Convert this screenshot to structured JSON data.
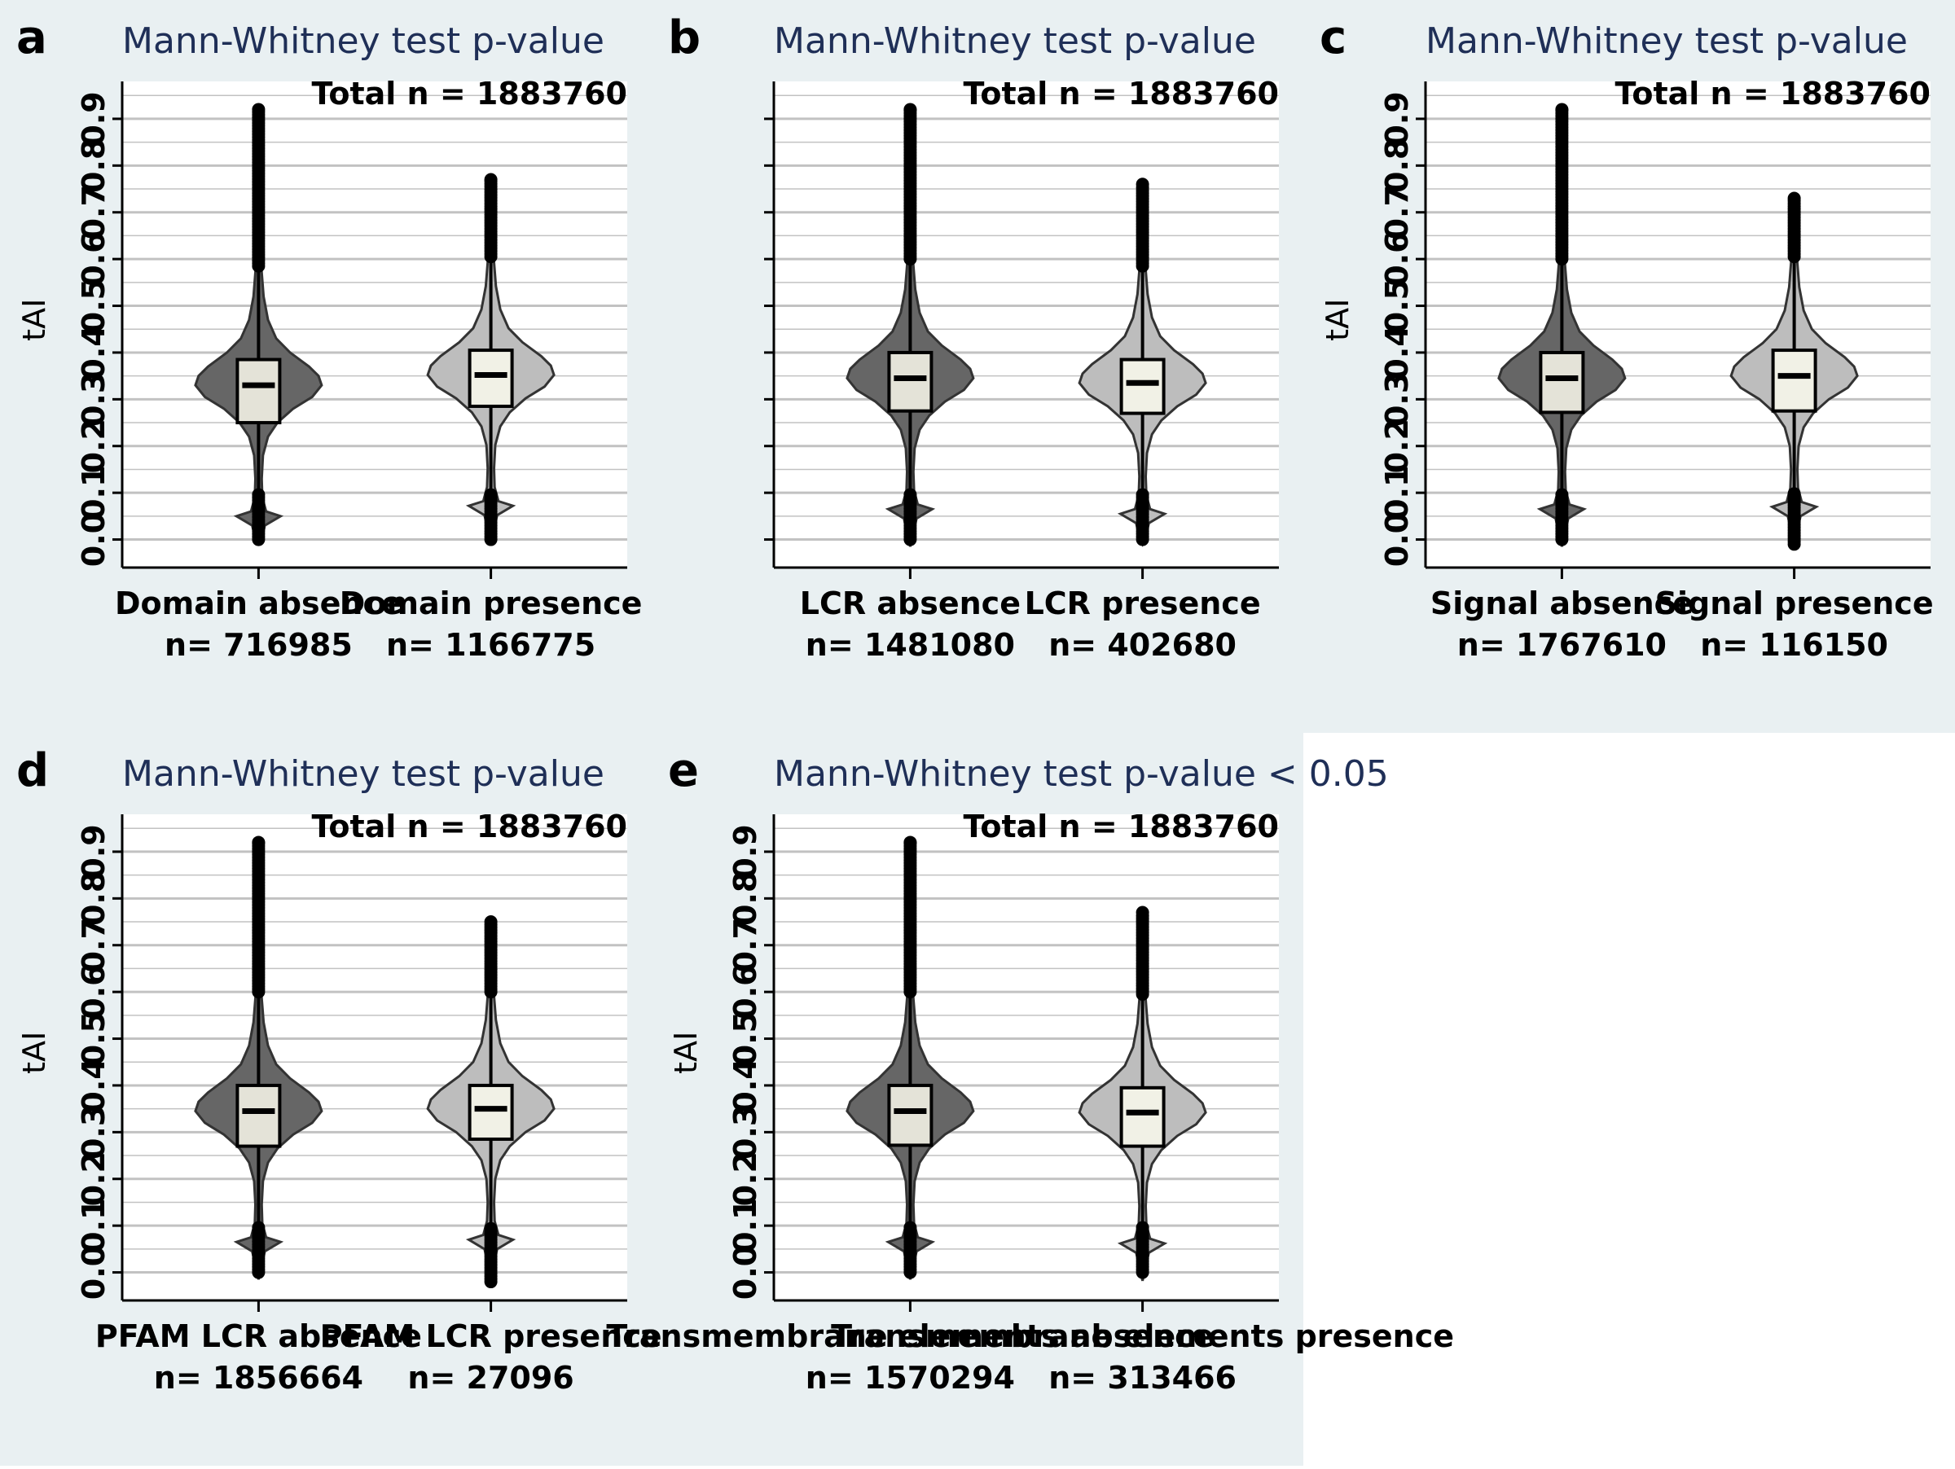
{
  "chart_data": [
    {
      "type": "violin",
      "panel": "a",
      "title": "Mann-Whitney test  p-value",
      "total_n": "Total n = 1883760",
      "ylabel": "tAI",
      "ylim": [
        -0.06,
        0.98
      ],
      "yticks": [
        0.0,
        0.1,
        0.2,
        0.3,
        0.4,
        0.5,
        0.6,
        0.7,
        0.8,
        0.9
      ],
      "ytick_labels": [
        "0.0",
        "0.1",
        "0.2",
        "0.3",
        "0.4",
        "0.5",
        "0.6",
        "0.7",
        "0.8",
        "0.9"
      ],
      "categories": [
        "Domain absence",
        "Domain presence"
      ],
      "counts": [
        "n= 716985",
        "n= 1166775"
      ],
      "box_stats": [
        {
          "q1": 0.25,
          "median": 0.33,
          "q3": 0.385,
          "min": 0.0,
          "max": 0.92
        },
        {
          "q1": 0.285,
          "median": 0.352,
          "q3": 0.405,
          "min": 0.0,
          "max": 0.77
        }
      ],
      "violin_colors": [
        "#666666",
        "#bdbdbd"
      ],
      "box_colors": [
        "#e4e3d8",
        "#f1f1e6"
      ]
    },
    {
      "type": "violin",
      "panel": "b",
      "title": "Mann-Whitney test  p-value",
      "total_n": "Total n = 1883760",
      "ylabel": "",
      "ylim": [
        -0.06,
        0.98
      ],
      "yticks": [
        0.0,
        0.1,
        0.2,
        0.3,
        0.4,
        0.5,
        0.6,
        0.7,
        0.8,
        0.9
      ],
      "ytick_labels": [],
      "categories": [
        "LCR absence",
        "LCR presence"
      ],
      "counts": [
        "n= 1481080",
        "n= 402680"
      ],
      "box_stats": [
        {
          "q1": 0.275,
          "median": 0.345,
          "q3": 0.4,
          "min": 0.0,
          "max": 0.92
        },
        {
          "q1": 0.27,
          "median": 0.335,
          "q3": 0.385,
          "min": 0.0,
          "max": 0.76
        }
      ],
      "violin_colors": [
        "#666666",
        "#bdbdbd"
      ],
      "box_colors": [
        "#e4e3d8",
        "#f1f1e6"
      ]
    },
    {
      "type": "violin",
      "panel": "c",
      "title": "Mann-Whitney test  p-value",
      "total_n": "Total n = 1883760",
      "ylabel": "tAI",
      "ylim": [
        -0.06,
        0.98
      ],
      "yticks": [
        0.0,
        0.1,
        0.2,
        0.3,
        0.4,
        0.5,
        0.6,
        0.7,
        0.8,
        0.9
      ],
      "ytick_labels": [
        "0.0",
        "0.1",
        "0.2",
        "0.3",
        "0.4",
        "0.5",
        "0.6",
        "0.7",
        "0.8",
        "0.9"
      ],
      "categories": [
        "Signal absence",
        "Signal presence"
      ],
      "counts": [
        "n= 1767610",
        "n= 116150"
      ],
      "box_stats": [
        {
          "q1": 0.272,
          "median": 0.345,
          "q3": 0.4,
          "min": 0.0,
          "max": 0.92
        },
        {
          "q1": 0.275,
          "median": 0.35,
          "q3": 0.405,
          "min": -0.01,
          "max": 0.73
        }
      ],
      "violin_colors": [
        "#666666",
        "#bdbdbd"
      ],
      "box_colors": [
        "#e4e3d8",
        "#f1f1e6"
      ]
    },
    {
      "type": "violin",
      "panel": "d",
      "title": "Mann-Whitney test  p-value",
      "total_n": "Total n = 1883760",
      "ylabel": "tAI",
      "ylim": [
        -0.06,
        0.98
      ],
      "yticks": [
        0.0,
        0.1,
        0.2,
        0.3,
        0.4,
        0.5,
        0.6,
        0.7,
        0.8,
        0.9
      ],
      "ytick_labels": [
        "0.0",
        "0.1",
        "0.2",
        "0.3",
        "0.4",
        "0.5",
        "0.6",
        "0.7",
        "0.8",
        "0.9"
      ],
      "categories": [
        "PFAM LCR absence",
        "PFAM LCR presence"
      ],
      "counts": [
        "n= 1856664",
        "n= 27096"
      ],
      "box_stats": [
        {
          "q1": 0.27,
          "median": 0.345,
          "q3": 0.4,
          "min": 0.0,
          "max": 0.92
        },
        {
          "q1": 0.285,
          "median": 0.35,
          "q3": 0.4,
          "min": -0.02,
          "max": 0.75
        }
      ],
      "violin_colors": [
        "#666666",
        "#bdbdbd"
      ],
      "box_colors": [
        "#e4e3d8",
        "#f1f1e6"
      ]
    },
    {
      "type": "violin",
      "panel": "e",
      "title": "Mann-Whitney test  p-value < 0.05",
      "total_n": "Total n = 1883760",
      "ylabel": "tAI",
      "ylim": [
        -0.06,
        0.98
      ],
      "yticks": [
        0.0,
        0.1,
        0.2,
        0.3,
        0.4,
        0.5,
        0.6,
        0.7,
        0.8,
        0.9
      ],
      "ytick_labels": [
        "0.0",
        "0.1",
        "0.2",
        "0.3",
        "0.4",
        "0.5",
        "0.6",
        "0.7",
        "0.8",
        "0.9"
      ],
      "categories": [
        "Transmembrane elements absence",
        "Transmembrane elements presence"
      ],
      "counts": [
        "n= 1570294",
        "n= 313466"
      ],
      "box_stats": [
        {
          "q1": 0.272,
          "median": 0.345,
          "q3": 0.4,
          "min": 0.0,
          "max": 0.92
        },
        {
          "q1": 0.27,
          "median": 0.342,
          "q3": 0.395,
          "min": 0.0,
          "max": 0.77
        }
      ],
      "violin_colors": [
        "#666666",
        "#bdbdbd"
      ],
      "box_colors": [
        "#e4e3d8",
        "#f1f1e6"
      ]
    }
  ],
  "colors": {
    "figure_background": "#e9f0f2",
    "plot_background": "#ffffff",
    "gridline": "#c2c2c2",
    "title_text": "#1f2f57"
  }
}
